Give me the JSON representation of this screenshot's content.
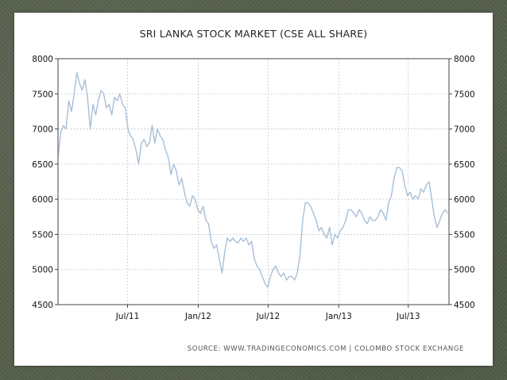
{
  "chart_data": {
    "type": "line",
    "title": "SRI LANKA STOCK MARKET (CSE ALL SHARE)",
    "source": "SOURCE:  WWW.TRADINGECONOMICS.COM  |  COLOMBO STOCK EXCHANGE",
    "xlabel": "",
    "ylabel": "",
    "ylim": [
      4500,
      8000
    ],
    "y_ticks": [
      8000,
      7500,
      7000,
      6500,
      6000,
      5500,
      5000,
      4500
    ],
    "x_range": [
      "2011-01-01",
      "2013-10-15"
    ],
    "x_ticks": [
      {
        "label": "Jul/11",
        "date": "2011-07-01"
      },
      {
        "label": "Jan/12",
        "date": "2012-01-01"
      },
      {
        "label": "Jul/12",
        "date": "2012-07-01"
      },
      {
        "label": "Jan/13",
        "date": "2013-01-01"
      },
      {
        "label": "Jul/13",
        "date": "2013-07-01"
      }
    ],
    "grid": true,
    "line_color": "#a8bfd8",
    "series": [
      {
        "dates": [
          "2011-01-01",
          "2011-01-08",
          "2011-01-15",
          "2011-01-22",
          "2011-01-29",
          "2011-02-05",
          "2011-02-12",
          "2011-02-19",
          "2011-02-26",
          "2011-03-05",
          "2011-03-12",
          "2011-03-19",
          "2011-03-26",
          "2011-04-02",
          "2011-04-09",
          "2011-04-16",
          "2011-04-23",
          "2011-04-30",
          "2011-05-07",
          "2011-05-14",
          "2011-05-21",
          "2011-05-28",
          "2011-06-04",
          "2011-06-11",
          "2011-06-18",
          "2011-06-25",
          "2011-07-02",
          "2011-07-09",
          "2011-07-16",
          "2011-07-23",
          "2011-07-30",
          "2011-08-06",
          "2011-08-13",
          "2011-08-20",
          "2011-08-27",
          "2011-09-03",
          "2011-09-10",
          "2011-09-17",
          "2011-09-24",
          "2011-10-01",
          "2011-10-08",
          "2011-10-15",
          "2011-10-22",
          "2011-10-29",
          "2011-11-05",
          "2011-11-12",
          "2011-11-19",
          "2011-11-26",
          "2011-12-03",
          "2011-12-10",
          "2011-12-17",
          "2011-12-24",
          "2011-12-31",
          "2012-01-07",
          "2012-01-14",
          "2012-01-21",
          "2012-01-28",
          "2012-02-04",
          "2012-02-11",
          "2012-02-18",
          "2012-02-25",
          "2012-03-03",
          "2012-03-10",
          "2012-03-17",
          "2012-03-24",
          "2012-03-31",
          "2012-04-07",
          "2012-04-14",
          "2012-04-21",
          "2012-04-28",
          "2012-05-05",
          "2012-05-12",
          "2012-05-19",
          "2012-05-26",
          "2012-06-02",
          "2012-06-09",
          "2012-06-16",
          "2012-06-23",
          "2012-06-30",
          "2012-07-07",
          "2012-07-14",
          "2012-07-21",
          "2012-07-28",
          "2012-08-04",
          "2012-08-11",
          "2012-08-18",
          "2012-08-25",
          "2012-09-01",
          "2012-09-08",
          "2012-09-15",
          "2012-09-22",
          "2012-09-29",
          "2012-10-06",
          "2012-10-13",
          "2012-10-20",
          "2012-10-27",
          "2012-11-03",
          "2012-11-10",
          "2012-11-17",
          "2012-11-24",
          "2012-12-01",
          "2012-12-08",
          "2012-12-15",
          "2012-12-22",
          "2012-12-29",
          "2013-01-05",
          "2013-01-12",
          "2013-01-19",
          "2013-01-26",
          "2013-02-02",
          "2013-02-09",
          "2013-02-16",
          "2013-02-23",
          "2013-03-02",
          "2013-03-09",
          "2013-03-16",
          "2013-03-23",
          "2013-03-30",
          "2013-04-06",
          "2013-04-13",
          "2013-04-20",
          "2013-04-27",
          "2013-05-04",
          "2013-05-11",
          "2013-05-18",
          "2013-05-25",
          "2013-06-01",
          "2013-06-08",
          "2013-06-15",
          "2013-06-22",
          "2013-06-29",
          "2013-07-06",
          "2013-07-13",
          "2013-07-20",
          "2013-07-27",
          "2013-08-03",
          "2013-08-10",
          "2013-08-17",
          "2013-08-24",
          "2013-08-31",
          "2013-09-07",
          "2013-09-14",
          "2013-09-21",
          "2013-09-28",
          "2013-10-05",
          "2013-10-12"
        ],
        "values": [
          6600,
          6950,
          7050,
          7000,
          7400,
          7250,
          7500,
          7800,
          7650,
          7550,
          7700,
          7450,
          7000,
          7350,
          7200,
          7400,
          7550,
          7500,
          7300,
          7350,
          7200,
          7450,
          7400,
          7500,
          7350,
          7300,
          7000,
          6900,
          6850,
          6700,
          6500,
          6800,
          6850,
          6750,
          6800,
          7050,
          6800,
          7000,
          6900,
          6850,
          6700,
          6600,
          6350,
          6500,
          6400,
          6200,
          6300,
          6100,
          5950,
          5900,
          6050,
          6000,
          5850,
          5800,
          5900,
          5700,
          5650,
          5400,
          5300,
          5350,
          5150,
          4950,
          5250,
          5450,
          5400,
          5450,
          5400,
          5380,
          5450,
          5400,
          5450,
          5350,
          5400,
          5150,
          5050,
          5000,
          4900,
          4800,
          4750,
          4900,
          5000,
          5050,
          4950,
          4900,
          4950,
          4850,
          4900,
          4900,
          4850,
          4950,
          5200,
          5700,
          5950,
          5950,
          5900,
          5800,
          5700,
          5550,
          5600,
          5500,
          5450,
          5600,
          5350,
          5500,
          5450,
          5550,
          5600,
          5700,
          5850,
          5850,
          5800,
          5750,
          5850,
          5800,
          5700,
          5650,
          5750,
          5700,
          5700,
          5750,
          5850,
          5800,
          5700,
          5950,
          6050,
          6300,
          6450,
          6450,
          6400,
          6200,
          6050,
          6100,
          6000,
          6050,
          6000,
          6150,
          6100,
          6200,
          6250,
          6000,
          5750,
          5600,
          5700,
          5800,
          5850,
          5800
        ]
      }
    ]
  }
}
